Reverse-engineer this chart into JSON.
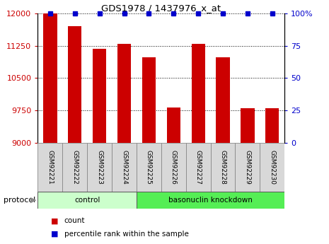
{
  "title": "GDS1978 / 1437976_x_at",
  "samples": [
    "GSM92221",
    "GSM92222",
    "GSM92223",
    "GSM92224",
    "GSM92225",
    "GSM92226",
    "GSM92227",
    "GSM92228",
    "GSM92229",
    "GSM92230"
  ],
  "counts": [
    12000,
    11700,
    11180,
    11300,
    10980,
    9820,
    11300,
    10980,
    9800,
    9800
  ],
  "percentile_ranks": [
    100,
    100,
    100,
    100,
    100,
    100,
    100,
    100,
    100,
    100
  ],
  "bar_color": "#cc0000",
  "dot_color": "#0000cc",
  "ylim_left": [
    9000,
    12000
  ],
  "ylim_right": [
    0,
    100
  ],
  "yticks_left": [
    9000,
    9750,
    10500,
    11250,
    12000
  ],
  "yticks_right": [
    0,
    25,
    50,
    75,
    100
  ],
  "groups": [
    {
      "label": "control",
      "start": 0,
      "end": 3,
      "color": "#ccffcc"
    },
    {
      "label": "basonuclin knockdown",
      "start": 4,
      "end": 9,
      "color": "#55ee55"
    }
  ],
  "protocol_label": "protocol",
  "legend_items": [
    {
      "label": "count",
      "color": "#cc0000"
    },
    {
      "label": "percentile rank within the sample",
      "color": "#0000cc"
    }
  ],
  "tick_label_color_left": "#cc0000",
  "tick_label_color_right": "#0000cc",
  "label_box_color": "#d8d8d8",
  "label_box_edge": "#888888"
}
